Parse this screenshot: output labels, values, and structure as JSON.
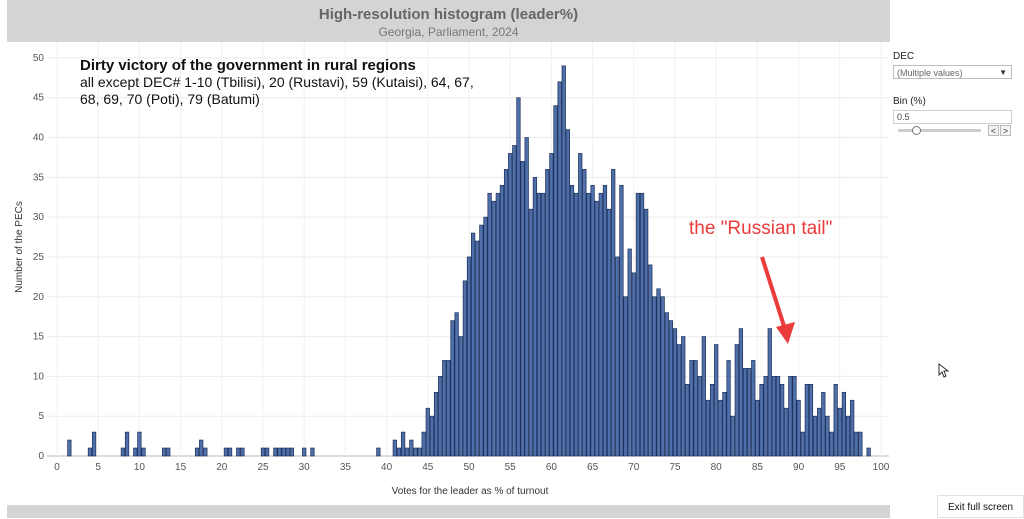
{
  "header": {
    "title": "High-resolution histogram (leader%)",
    "subtitle": "Georgia, Parliament, 2024"
  },
  "annotation": {
    "title": "Dirty victory of the government in rural regions",
    "body": "all except DEC# 1-10 (Tbilisi), 20 (Rustavi), 59 (Kutaisi), 64, 67, 68, 69, 70 (Poti), 79 (Batumi)",
    "callout": "the \"Russian tail\""
  },
  "controls": {
    "dec_label": "DEC",
    "dec_value": "(Multiple values)",
    "bin_label": "Bin (%)",
    "bin_value": "0.5",
    "prev_glyph": "<",
    "next_glyph": ">"
  },
  "exit_button": "Exit full screen",
  "colors": {
    "bar": "#4e6fa8",
    "bar_edge": "#1d2f5a",
    "callout": "#ec3b3b"
  },
  "chart_data": {
    "type": "bar",
    "title": "High-resolution histogram (leader%)",
    "subtitle": "Georgia, Parliament, 2024",
    "xlabel": "Votes for the leader as % of turnout",
    "ylabel": "Number of the PECs",
    "xlim": [
      0,
      100
    ],
    "ylim": [
      0,
      52
    ],
    "bin_width": 0.5,
    "xticks": [
      0,
      5,
      10,
      15,
      20,
      25,
      30,
      35,
      40,
      45,
      50,
      55,
      60,
      65,
      70,
      75,
      80,
      85,
      90,
      95,
      100
    ],
    "yticks": [
      0,
      5,
      10,
      15,
      20,
      25,
      30,
      35,
      40,
      45,
      50
    ],
    "x": [
      1.5,
      4.0,
      4.5,
      8.0,
      8.5,
      9.5,
      10.0,
      10.5,
      13.0,
      13.5,
      17.0,
      17.5,
      18.0,
      20.5,
      21.0,
      22.0,
      22.5,
      25.0,
      25.5,
      26.5,
      27.0,
      27.5,
      28.0,
      28.5,
      30.0,
      31.0,
      39.0,
      41.0,
      41.5,
      42.0,
      42.5,
      43.0,
      43.5,
      44.0,
      44.5,
      45.0,
      45.5,
      46.0,
      46.5,
      47.0,
      47.5,
      48.0,
      48.5,
      49.0,
      49.5,
      50.0,
      50.5,
      51.0,
      51.5,
      52.0,
      52.5,
      53.0,
      53.5,
      54.0,
      54.5,
      55.0,
      55.5,
      56.0,
      56.5,
      57.0,
      57.5,
      58.0,
      58.5,
      59.0,
      59.5,
      60.0,
      60.5,
      61.0,
      61.5,
      62.0,
      62.5,
      63.0,
      63.5,
      64.0,
      64.5,
      65.0,
      65.5,
      66.0,
      66.5,
      67.0,
      67.5,
      68.0,
      68.5,
      69.0,
      69.5,
      70.0,
      70.5,
      71.0,
      71.5,
      72.0,
      72.5,
      73.0,
      73.5,
      74.0,
      74.5,
      75.0,
      75.5,
      76.0,
      76.5,
      77.0,
      77.5,
      78.0,
      78.5,
      79.0,
      79.5,
      80.0,
      80.5,
      81.0,
      81.5,
      82.0,
      82.5,
      83.0,
      83.5,
      84.0,
      84.5,
      85.0,
      85.5,
      86.0,
      86.5,
      87.0,
      87.5,
      88.0,
      88.5,
      89.0,
      89.5,
      90.0,
      90.5,
      91.0,
      91.5,
      92.0,
      92.5,
      93.0,
      93.5,
      94.0,
      94.5,
      95.0,
      95.5,
      96.0,
      96.5,
      97.0,
      97.5,
      98.5
    ],
    "values": [
      2,
      1,
      3,
      1,
      3,
      1,
      3,
      1,
      1,
      1,
      1,
      2,
      1,
      1,
      1,
      1,
      1,
      1,
      1,
      1,
      1,
      1,
      1,
      1,
      1,
      1,
      1,
      2,
      1,
      3,
      1,
      2,
      1,
      1,
      3,
      6,
      5,
      8,
      10,
      12,
      12,
      17,
      18,
      15,
      22,
      25,
      28,
      27,
      29,
      30,
      33,
      32,
      33,
      34,
      36,
      38,
      39,
      45,
      37,
      40,
      31,
      35,
      33,
      33,
      36,
      38,
      44,
      47,
      49,
      41,
      34,
      33,
      38,
      36,
      33,
      34,
      32,
      33,
      34,
      31,
      36,
      25,
      34,
      20,
      26,
      23,
      33,
      33,
      31,
      24,
      20,
      21,
      20,
      18,
      17,
      16,
      14,
      15,
      9,
      12,
      12,
      10,
      15,
      7,
      9,
      14,
      7,
      8,
      12,
      5,
      14,
      16,
      11,
      11,
      12,
      7,
      9,
      10,
      16,
      10,
      10,
      9,
      6,
      10,
      10,
      7,
      3,
      9,
      9,
      5,
      6,
      8,
      5,
      3,
      9,
      6,
      8,
      5,
      7,
      3,
      3,
      1
    ],
    "legend": "none",
    "grid": true
  }
}
